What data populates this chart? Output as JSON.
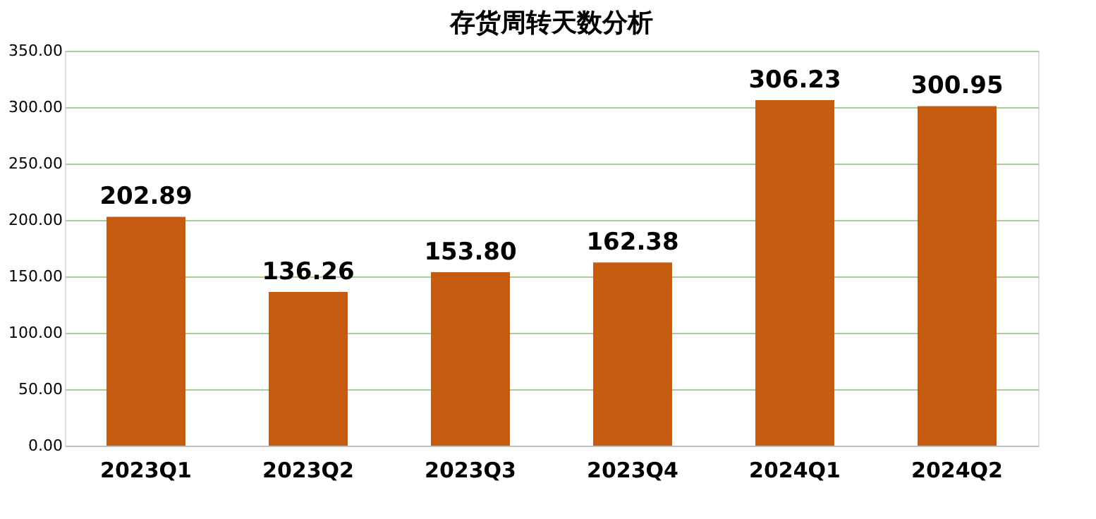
{
  "chart_data": {
    "type": "bar",
    "title": "存货周转天数分析",
    "categories": [
      "2023Q1",
      "2023Q2",
      "2023Q3",
      "2023Q4",
      "2024Q1",
      "2024Q2"
    ],
    "values": [
      202.89,
      136.26,
      153.8,
      162.38,
      306.23,
      300.95
    ],
    "value_labels": [
      "202.89",
      "136.26",
      "153.80",
      "162.38",
      "306.23",
      "300.95"
    ],
    "color": "#c55a11",
    "ylim": [
      0,
      350
    ],
    "yticks": [
      {
        "value": 0,
        "label": "0.00"
      },
      {
        "value": 50,
        "label": "50.00"
      },
      {
        "value": 100,
        "label": "100.00"
      },
      {
        "value": 150,
        "label": "150.00"
      },
      {
        "value": 200,
        "label": "200.00"
      },
      {
        "value": 250,
        "label": "250.00"
      },
      {
        "value": 300,
        "label": "300.00"
      },
      {
        "value": 350,
        "label": "350.00"
      }
    ],
    "grid": "y"
  }
}
